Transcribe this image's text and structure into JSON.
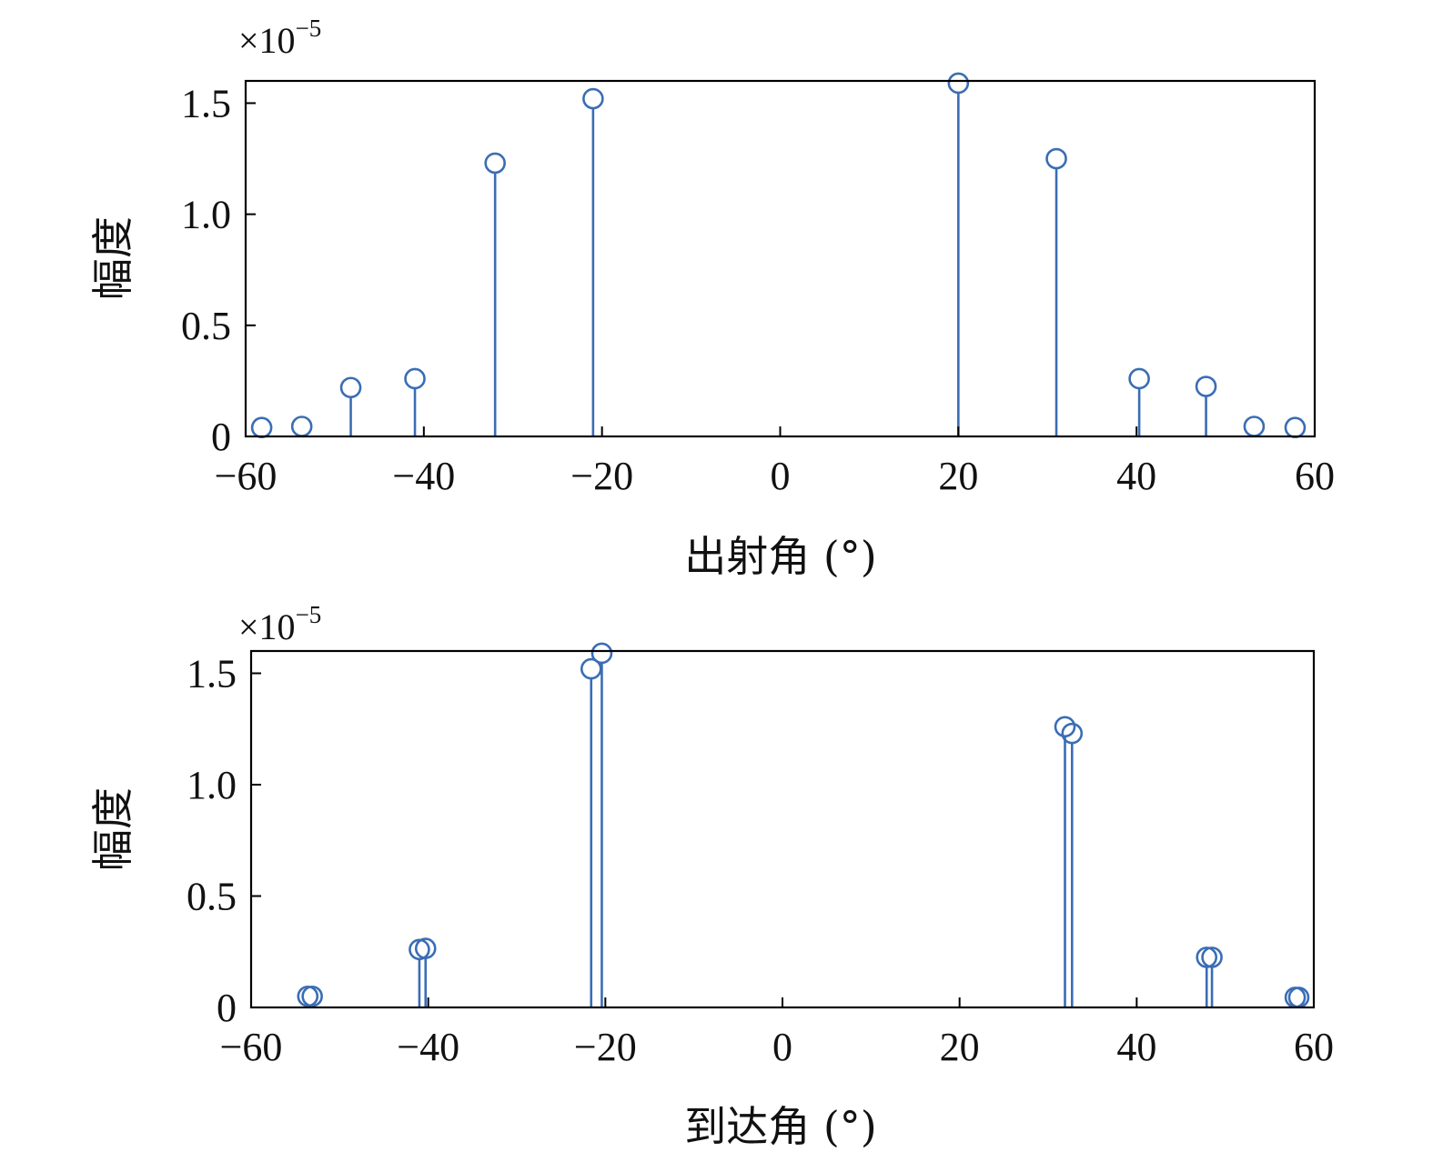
{
  "chart_data": [
    {
      "type": "stem",
      "title": "",
      "xlabel": "出射角 (°)",
      "ylabel": "幅度",
      "y_multiplier": {
        "base": "×10",
        "exponent": "−5"
      },
      "xlim": [
        -60,
        60
      ],
      "ylim": [
        0,
        1.6
      ],
      "xticks": [
        -60,
        -40,
        -20,
        0,
        20,
        40,
        60
      ],
      "xtick_labels": [
        "−60",
        "−40",
        "−20",
        "0",
        "20",
        "40",
        "60"
      ],
      "yticks": [
        0,
        0.5,
        1.0,
        1.5
      ],
      "ytick_labels": [
        "0",
        "0.5",
        "1.0",
        "1.5"
      ],
      "grid": false,
      "color": "#3a6db5",
      "points": [
        {
          "x": -58.2,
          "y": 0.04
        },
        {
          "x": -53.7,
          "y": 0.045
        },
        {
          "x": -48.2,
          "y": 0.22
        },
        {
          "x": -41.0,
          "y": 0.26
        },
        {
          "x": -32.0,
          "y": 1.23
        },
        {
          "x": -21.0,
          "y": 1.52
        },
        {
          "x": 20.0,
          "y": 1.59
        },
        {
          "x": 31.0,
          "y": 1.25
        },
        {
          "x": 40.3,
          "y": 0.26
        },
        {
          "x": 47.8,
          "y": 0.225
        },
        {
          "x": 53.2,
          "y": 0.045
        },
        {
          "x": 57.8,
          "y": 0.04
        }
      ]
    },
    {
      "type": "stem",
      "title": "",
      "xlabel": "到达角 (°)",
      "ylabel": "幅度",
      "y_multiplier": {
        "base": "×10",
        "exponent": "−5"
      },
      "xlim": [
        -60,
        60
      ],
      "ylim": [
        0,
        1.6
      ],
      "xticks": [
        -60,
        -40,
        -20,
        0,
        20,
        40,
        60
      ],
      "xtick_labels": [
        "−60",
        "−40",
        "−20",
        "0",
        "20",
        "40",
        "60"
      ],
      "yticks": [
        0,
        0.5,
        1.0,
        1.5
      ],
      "ytick_labels": [
        "0",
        "0.5",
        "1.0",
        "1.5"
      ],
      "grid": false,
      "color": "#3a6db5",
      "points": [
        {
          "x": -53.6,
          "y": 0.05
        },
        {
          "x": -53.1,
          "y": 0.05
        },
        {
          "x": -41.0,
          "y": 0.26
        },
        {
          "x": -40.3,
          "y": 0.265
        },
        {
          "x": -21.6,
          "y": 1.52
        },
        {
          "x": -20.4,
          "y": 1.59
        },
        {
          "x": 31.9,
          "y": 1.26
        },
        {
          "x": 32.7,
          "y": 1.23
        },
        {
          "x": 47.9,
          "y": 0.225
        },
        {
          "x": 48.5,
          "y": 0.225
        },
        {
          "x": 57.9,
          "y": 0.045
        },
        {
          "x": 58.3,
          "y": 0.045
        }
      ]
    }
  ]
}
